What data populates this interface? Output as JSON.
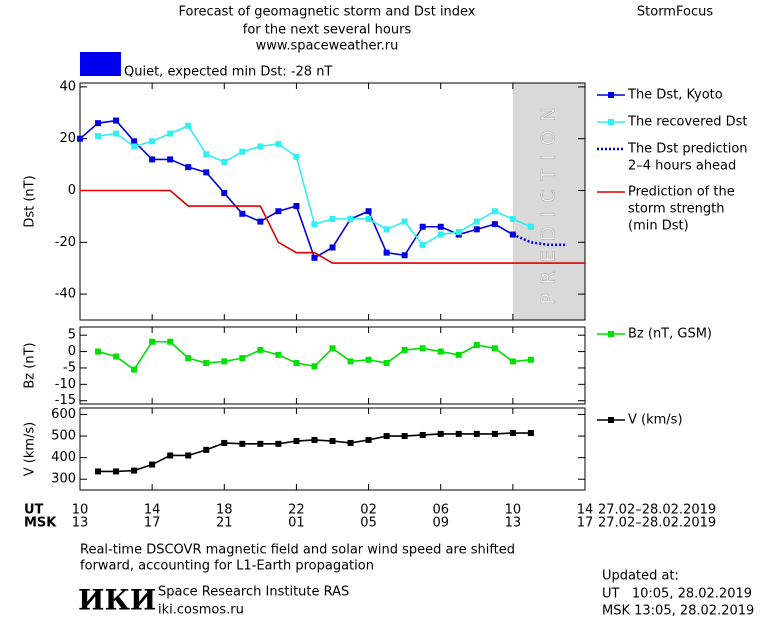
{
  "header": {
    "title": [
      "Forecast of geomagnetic storm and Dst index",
      "for the next several hours",
      "www.spaceweather.ru"
    ],
    "brand": "StormFocus",
    "status": "Quiet, expected min Dst: -28 nT",
    "status_color": "#0000ee"
  },
  "chart_data": [
    {
      "type": "line",
      "ylabel": "Dst (nT)",
      "xlim": [
        10,
        38
      ],
      "ylim": [
        -50,
        41.5
      ],
      "yticks": [
        40,
        20,
        0,
        -20,
        -40
      ],
      "shaded": {
        "xlim": [
          34,
          38
        ],
        "label": "PREDICTION",
        "color": "#d9d9d9"
      },
      "series": [
        {
          "name": [
            "The Dst, Kyoto"
          ],
          "color": "#0000e0",
          "marker": "square",
          "x": [
            10,
            11,
            12,
            13,
            14,
            15,
            16,
            17,
            18,
            19,
            20,
            21,
            22,
            23,
            24,
            25,
            26,
            27,
            28,
            29,
            30,
            31,
            32,
            33,
            34
          ],
          "values": [
            20,
            26,
            27,
            19,
            12,
            12,
            9,
            7,
            -1,
            -9,
            -12,
            -8,
            -6,
            -26,
            -22,
            -11,
            -8,
            -24,
            -25,
            -14,
            -14,
            -17,
            -15,
            -13,
            -17
          ]
        },
        {
          "name": [
            "The recovered Dst"
          ],
          "color": "#30f0f0",
          "marker": "square",
          "x": [
            11,
            12,
            13,
            14,
            15,
            16,
            17,
            18,
            19,
            20,
            21,
            22,
            23,
            24,
            25,
            26,
            27,
            28,
            29,
            30,
            31,
            32,
            33,
            34,
            35
          ],
          "values": [
            21,
            22,
            17,
            19,
            22,
            25,
            14,
            11,
            15,
            17,
            18,
            13,
            -13,
            -11,
            -11,
            -11,
            -15,
            -12,
            -21,
            -17,
            -16,
            -12,
            -8,
            -11,
            -14
          ]
        },
        {
          "name": [
            "The Dst prediction",
            "2–4 hours ahead"
          ],
          "color": "#0000e0",
          "marker": "none",
          "dash": "dotted",
          "x": [
            34,
            35,
            36,
            37
          ],
          "values": [
            -17,
            -20,
            -21,
            -21
          ]
        },
        {
          "name": [
            "Prediction of the",
            "storm strength",
            "(min Dst)"
          ],
          "color": "#e00000",
          "marker": "none",
          "x": [
            10,
            15,
            16,
            20,
            21,
            22,
            23,
            24,
            38
          ],
          "values": [
            0,
            0,
            -6,
            -6,
            -20,
            -24,
            -24,
            -28,
            -28
          ]
        }
      ]
    },
    {
      "type": "line",
      "ylabel": "Bz (nT)",
      "xlim": [
        10,
        38
      ],
      "ylim": [
        -16,
        7.5
      ],
      "yticks": [
        5,
        0,
        -5,
        -10,
        -15
      ],
      "series": [
        {
          "name": [
            "Bz (nT, GSM)"
          ],
          "color": "#00e000",
          "marker": "square",
          "x": [
            11,
            12,
            13,
            14,
            15,
            16,
            17,
            18,
            19,
            20,
            21,
            22,
            23,
            24,
            25,
            26,
            27,
            28,
            29,
            30,
            31,
            32,
            33,
            34,
            35
          ],
          "values": [
            0,
            -1.5,
            -5.5,
            3,
            3,
            -2,
            -3.5,
            -3,
            -2,
            0.5,
            -1,
            -3.5,
            -4.5,
            1,
            -3,
            -2.5,
            -3.5,
            0.5,
            1,
            0,
            -1,
            2,
            1,
            -3,
            -2.5
          ]
        }
      ]
    },
    {
      "type": "line",
      "ylabel": "V (km/s)",
      "xlim": [
        10,
        38
      ],
      "ylim": [
        250,
        630
      ],
      "yticks": [
        600,
        500,
        400,
        300
      ],
      "xticks": [
        10,
        14,
        18,
        22,
        {
          "value": 26,
          "label": "02"
        },
        {
          "value": 30,
          "label": "06"
        },
        {
          "value": 34,
          "label": "10"
        },
        {
          "value": 38,
          "label": "14"
        }
      ],
      "xticks_msk": [
        {
          "value": 10,
          "label": "13"
        },
        {
          "value": 14,
          "label": "17"
        },
        {
          "value": 18,
          "label": "21"
        },
        {
          "value": 22,
          "label": "01"
        },
        {
          "value": 26,
          "label": "05"
        },
        {
          "value": 30,
          "label": "09"
        },
        {
          "value": 34,
          "label": "13"
        },
        {
          "value": 38,
          "label": "17"
        }
      ],
      "x_row_labels": [
        "UT",
        "MSK"
      ],
      "x_row_dates": [
        "27.02–28.02.2019",
        "27.02–28.02.2019"
      ],
      "series": [
        {
          "name": [
            "V (km/s)"
          ],
          "color": "#000000",
          "marker": "square",
          "x": [
            11,
            12,
            13,
            14,
            15,
            16,
            17,
            18,
            19,
            20,
            21,
            22,
            23,
            24,
            25,
            26,
            27,
            28,
            29,
            30,
            31,
            32,
            33,
            34,
            35
          ],
          "values": [
            336,
            336,
            340,
            368,
            410,
            410,
            436,
            468,
            464,
            464,
            464,
            477,
            482,
            477,
            468,
            482,
            500,
            500,
            505,
            510,
            510,
            510,
            510,
            514,
            514
          ]
        }
      ]
    }
  ],
  "footer": {
    "note": [
      "Real-time DSCOVR magnetic field and solar wind speed are shifted",
      "forward, accounting for L1-Earth propagation"
    ],
    "logo": "ИКИ",
    "institute": "Space Research Institute RAS",
    "site": "iki.cosmos.ru",
    "updated": [
      "Updated at:",
      "UT   10:05, 28.02.2019",
      "MSK 13:05, 28.02.2019"
    ]
  }
}
